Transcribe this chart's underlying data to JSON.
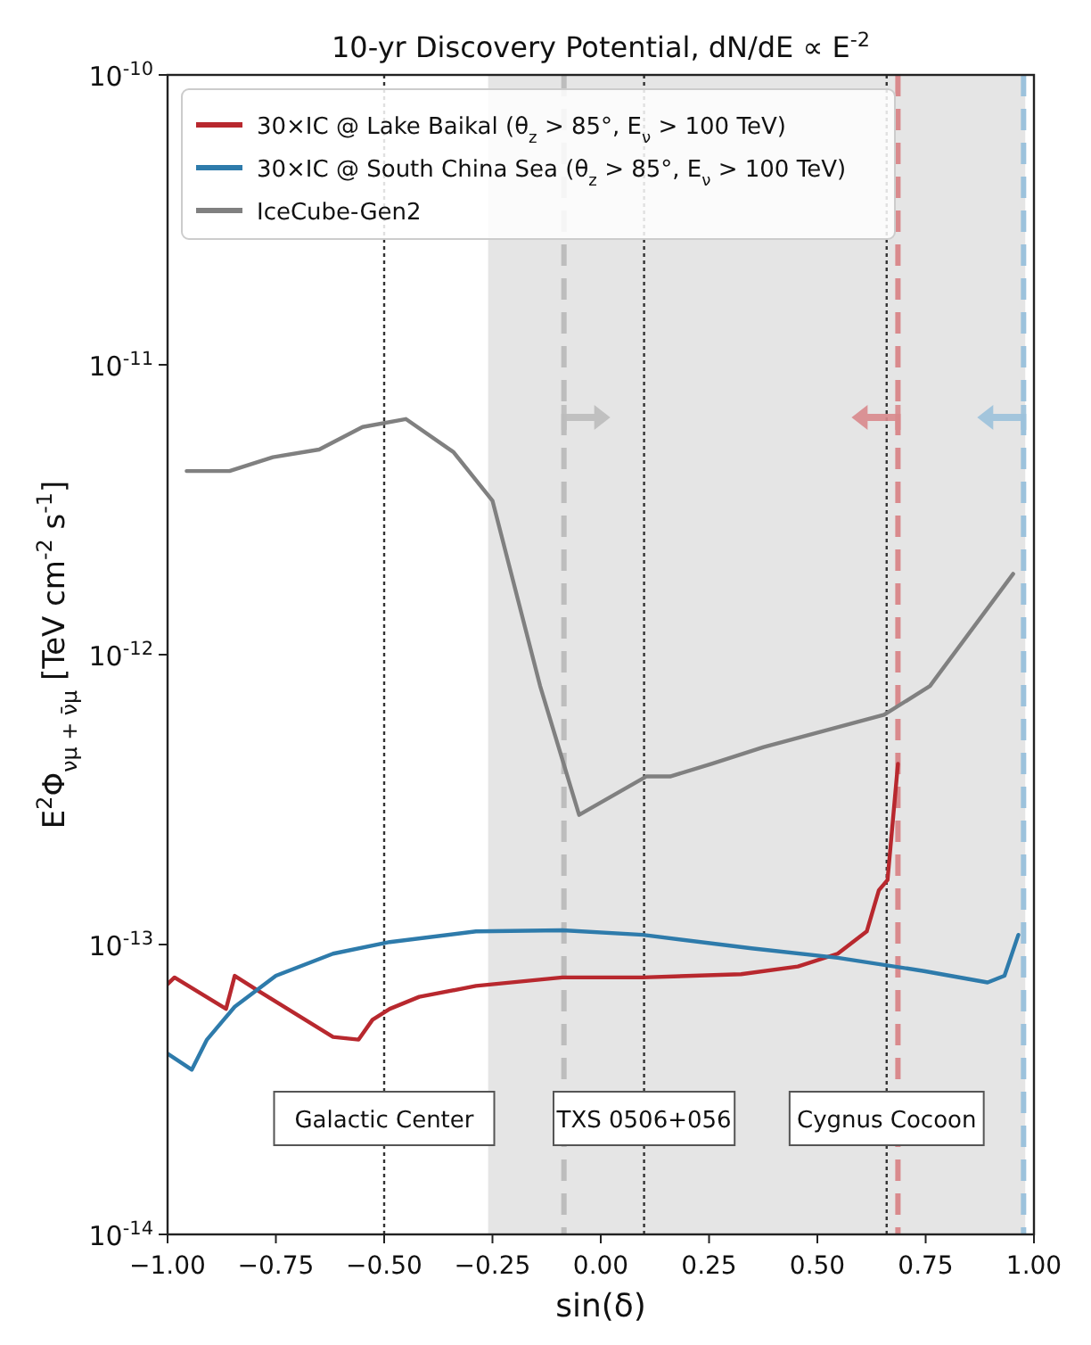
{
  "chart_data": {
    "type": "line",
    "title": "10-yr Discovery Potential, dN/dE ∝ E$^{-2}$",
    "xlabel": "sin(δ)",
    "ylabel": "E$^{2}$Φ$_{νμ + ν̄μ}$ [TeV cm$^{-2}$ s$^{-1}$]",
    "log": "y",
    "xlim": [
      -1,
      1
    ],
    "xticks": [
      {
        "value": -1,
        "label": "−1.00"
      },
      {
        "value": -0.75,
        "label": "−0.75"
      },
      {
        "value": -0.5,
        "label": "−0.50"
      },
      {
        "value": -0.25,
        "label": "−0.25"
      },
      {
        "value": 0,
        "label": "0.00"
      },
      {
        "value": 0.25,
        "label": "0.25"
      },
      {
        "value": 0.5,
        "label": "0.50"
      },
      {
        "value": 0.75,
        "label": "0.75"
      },
      {
        "value": 1,
        "label": "1.00"
      }
    ],
    "ylim": [
      1e-14,
      1e-10
    ],
    "yticks": [
      {
        "value": 1e-14,
        "label": "10$^{-14}$"
      },
      {
        "value": 1e-13,
        "label": "10$^{-13}$"
      },
      {
        "value": 1e-12,
        "label": "10$^{-12}$"
      },
      {
        "value": 1e-11,
        "label": "10$^{-11}$"
      },
      {
        "value": 1e-10,
        "label": "10$^{-10}$"
      }
    ],
    "legend": "top left",
    "grid": false,
    "series": [
      {
        "name": "30×IC @ Lake Baikal (θ$_{z}$ > 85°, E$_{ν}$ > 100 TeV)",
        "color": "#b8282e",
        "x": [
          -1.0,
          -0.984,
          -0.865,
          -0.845,
          -0.789,
          -0.618,
          -0.559,
          -0.527,
          -0.487,
          -0.419,
          -0.288,
          -0.089,
          0.097,
          0.324,
          0.455,
          0.547,
          0.614,
          0.642,
          0.662,
          0.686
        ],
        "values": [
          7.3e-14,
          7.7e-14,
          6e-14,
          7.8e-14,
          6.9e-14,
          4.8e-14,
          4.7e-14,
          5.5e-14,
          6e-14,
          6.6e-14,
          7.2e-14,
          7.7e-14,
          7.7e-14,
          7.9e-14,
          8.4e-14,
          9.3e-14,
          1.11e-13,
          1.54e-13,
          1.67e-13,
          4.2e-13
        ]
      },
      {
        "name": "30×IC @ South China Sea (θ$_{z}$ > 85°, E$_{ν}$ > 100 TeV)",
        "color": "#2e7bab",
        "x": [
          -1.0,
          -0.944,
          -0.909,
          -0.845,
          -0.75,
          -0.618,
          -0.487,
          -0.288,
          -0.089,
          0.097,
          0.348,
          0.547,
          0.746,
          0.893,
          0.932,
          0.964
        ],
        "values": [
          4.2e-14,
          3.7e-14,
          4.7e-14,
          6.1e-14,
          7.8e-14,
          9.3e-14,
          1.02e-13,
          1.11e-13,
          1.12e-13,
          1.08e-13,
          9.7e-14,
          9e-14,
          8.1e-14,
          7.4e-14,
          7.8e-14,
          1.08e-13
        ]
      },
      {
        "name": "IceCube-Gen2",
        "color": "#808080",
        "x": [
          -0.956,
          -0.857,
          -0.757,
          -0.65,
          -0.55,
          -0.45,
          -0.34,
          -0.25,
          -0.14,
          -0.05,
          0.105,
          0.16,
          0.256,
          0.376,
          0.654,
          0.76,
          0.952
        ],
        "values": [
          4.3e-12,
          4.3e-12,
          4.8e-12,
          5.1e-12,
          6.1e-12,
          6.5e-12,
          5e-12,
          3.4e-12,
          7.8e-13,
          2.8e-13,
          3.8e-13,
          3.8e-13,
          4.2e-13,
          4.8e-13,
          6.2e-13,
          7.8e-13,
          1.9e-12
        ]
      }
    ],
    "bands": [
      {
        "axis": "x",
        "from": -0.26,
        "to": 0.98,
        "color": "#e5e5e5"
      }
    ],
    "ref_lines": [
      {
        "axis": "x",
        "value": -0.5,
        "label": "Galactic Center",
        "color": "#333333",
        "line_style": "dotted"
      },
      {
        "axis": "x",
        "value": 0.1,
        "label": "TXS 0506+056",
        "color": "#333333",
        "line_style": "dotted"
      },
      {
        "axis": "x",
        "value": 0.66,
        "label": "Cygnus Cocoon",
        "color": "#333333",
        "line_style": "dotted"
      },
      {
        "axis": "x",
        "value": -0.085,
        "color": "#bdbdbd",
        "line_style": "dashed"
      },
      {
        "axis": "x",
        "value": 0.686,
        "color": "#d98a8d",
        "line_style": "dashed"
      },
      {
        "axis": "x",
        "value": 0.976,
        "color": "#9cc2dc",
        "line_style": "dashed"
      }
    ]
  }
}
